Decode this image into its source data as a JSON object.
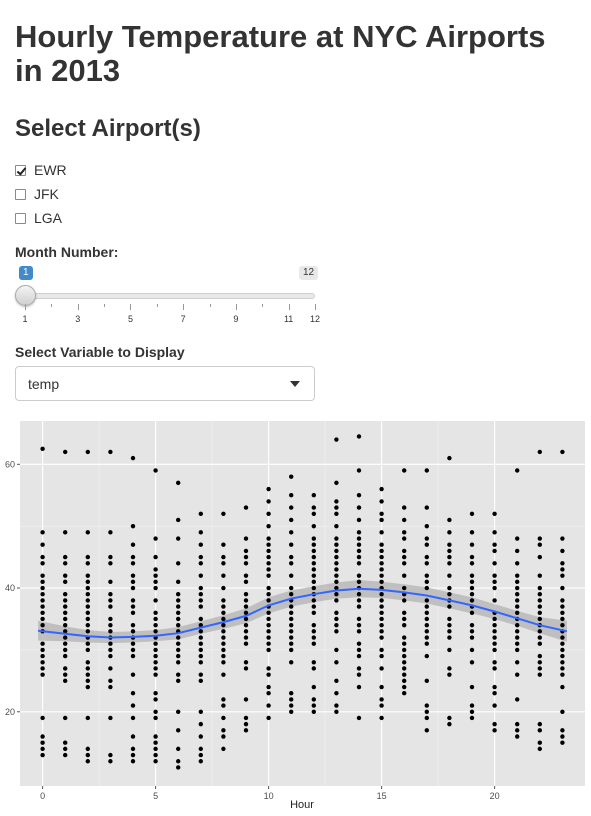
{
  "header": {
    "title": "Hourly Temperature at NYC Airports in 2013"
  },
  "airports": {
    "title": "Select Airport(s)",
    "options": [
      {
        "label": "EWR",
        "checked": true
      },
      {
        "label": "JFK",
        "checked": false
      },
      {
        "label": "LGA",
        "checked": false
      }
    ]
  },
  "month": {
    "label": "Month Number:",
    "value": "1",
    "max_label": "12",
    "min": 1,
    "max": 12,
    "current": 1,
    "ticks": [
      "1",
      "3",
      "5",
      "7",
      "9",
      "11",
      "12"
    ]
  },
  "variable": {
    "label": "Select Variable to Display",
    "selected": "temp"
  },
  "chart_data": {
    "type": "scatter",
    "title": "",
    "xlabel": "Hour",
    "ylabel": "",
    "xlim": [
      -1,
      24
    ],
    "ylim": [
      8,
      67
    ],
    "xticks": [
      0,
      5,
      10,
      15,
      20
    ],
    "yticks": [
      20,
      40,
      60
    ],
    "grid": true,
    "background": "#e5e5e5",
    "point_color": "#000000",
    "smooth_color": "#3366ff",
    "band_color": "#b8b8b8",
    "columns": [
      {
        "x": 0,
        "y": [
          62.5,
          49,
          47,
          45,
          44,
          42,
          41,
          40,
          39,
          38,
          37,
          36,
          35,
          34,
          33,
          31,
          30,
          29,
          28,
          27,
          26,
          19,
          16,
          15,
          14,
          13
        ]
      },
      {
        "x": 1,
        "y": [
          62,
          49,
          45,
          44,
          42,
          41,
          39,
          38,
          37,
          36,
          35,
          34,
          33,
          32,
          31,
          30,
          29,
          27,
          26,
          25,
          19,
          15,
          14,
          13
        ]
      },
      {
        "x": 2,
        "y": [
          62,
          49,
          45,
          44,
          42,
          41,
          40,
          39,
          38,
          37,
          36,
          35,
          34,
          33,
          32,
          31,
          30,
          28,
          27,
          26,
          25,
          24,
          19,
          14,
          13,
          12
        ]
      },
      {
        "x": 3,
        "y": [
          62,
          49,
          45,
          44,
          41,
          39,
          38,
          37,
          35,
          34,
          33,
          32,
          31,
          30,
          29,
          27,
          25,
          24,
          19,
          13,
          12
        ]
      },
      {
        "x": 4,
        "y": [
          61,
          50,
          47,
          45,
          44,
          42,
          41,
          40,
          38,
          37,
          36,
          34,
          33,
          32,
          31,
          30,
          29,
          26,
          23,
          21,
          19,
          16,
          14,
          13,
          12
        ]
      },
      {
        "x": 5,
        "y": [
          59,
          48,
          45,
          43,
          42,
          41,
          40,
          38,
          36,
          35,
          34,
          33,
          32,
          31,
          30,
          29,
          28,
          27,
          26,
          23,
          22,
          20,
          19,
          16,
          15,
          14,
          13,
          12
        ]
      },
      {
        "x": 6,
        "y": [
          57,
          51,
          48,
          44,
          41,
          39,
          38,
          37,
          36,
          35,
          34,
          33,
          32,
          31,
          30,
          29,
          28,
          26,
          25,
          20,
          17,
          14,
          12,
          11
        ]
      },
      {
        "x": 7,
        "y": [
          52,
          49,
          47,
          45,
          44,
          42,
          40,
          39,
          38,
          37,
          35,
          34,
          33,
          32,
          31,
          30,
          29,
          28,
          26,
          25,
          20,
          18,
          16,
          14,
          13,
          12
        ]
      },
      {
        "x": 8,
        "y": [
          52,
          47,
          45,
          44,
          42,
          40,
          38,
          37,
          36,
          35,
          34,
          33,
          32,
          31,
          30,
          29,
          28,
          26,
          22,
          21,
          19,
          17,
          16,
          14
        ]
      },
      {
        "x": 9,
        "y": [
          53,
          48,
          46,
          45,
          44,
          42,
          41,
          39,
          38,
          37,
          36,
          35,
          34,
          33,
          32,
          31,
          28,
          27,
          22,
          19,
          18,
          17
        ]
      },
      {
        "x": 10,
        "y": [
          56,
          54,
          52,
          50,
          48,
          47,
          46,
          45,
          44,
          43,
          42,
          40,
          39,
          38,
          37,
          36,
          35,
          34,
          33,
          32,
          31,
          30,
          27,
          26,
          24,
          23,
          21,
          19
        ]
      },
      {
        "x": 11,
        "y": [
          58,
          55,
          53,
          51,
          49,
          47,
          45,
          44,
          42,
          40,
          39,
          38,
          37,
          36,
          35,
          34,
          33,
          32,
          31,
          30,
          28,
          23,
          22,
          21,
          20
        ]
      },
      {
        "x": 12,
        "y": [
          55,
          53,
          52,
          50,
          48,
          47,
          46,
          45,
          44,
          43,
          42,
          41,
          40,
          39,
          38,
          37,
          36,
          34,
          33,
          32,
          31,
          28,
          27,
          24,
          22,
          21,
          20
        ]
      },
      {
        "x": 13,
        "y": [
          64,
          57,
          54,
          53,
          52,
          50,
          48,
          47,
          46,
          45,
          44,
          43,
          42,
          41,
          40,
          39,
          38,
          36,
          35,
          34,
          33,
          30,
          28,
          25,
          23,
          21,
          20
        ]
      },
      {
        "x": 14,
        "y": [
          64.5,
          59,
          55,
          53,
          51,
          49,
          48,
          47,
          46,
          45,
          44,
          42,
          41,
          40,
          39,
          38,
          37,
          35,
          34,
          33,
          31,
          30,
          29,
          27,
          26,
          24,
          19
        ]
      },
      {
        "x": 15,
        "y": [
          56,
          54,
          52,
          51,
          49,
          47,
          46,
          45,
          44,
          43,
          42,
          41,
          40,
          39,
          38,
          37,
          36,
          35,
          34,
          33,
          32,
          30,
          29,
          27,
          24,
          22,
          21,
          19
        ]
      },
      {
        "x": 16,
        "y": [
          59,
          53,
          51,
          49,
          48,
          46,
          45,
          44,
          42,
          40,
          39,
          38,
          36,
          35,
          34,
          32,
          31,
          30,
          29,
          28,
          27,
          26,
          25,
          24,
          23
        ]
      },
      {
        "x": 17,
        "y": [
          59,
          53,
          50,
          48,
          47,
          45,
          44,
          42,
          41,
          40,
          38,
          37,
          36,
          35,
          34,
          33,
          32,
          31,
          29,
          25,
          21,
          20,
          19,
          17
        ]
      },
      {
        "x": 18,
        "y": [
          61,
          51,
          49,
          47,
          46,
          45,
          44,
          42,
          40,
          39,
          38,
          37,
          35,
          34,
          33,
          32,
          30,
          27,
          26,
          19,
          18
        ]
      },
      {
        "x": 19,
        "y": [
          52,
          49,
          47,
          45,
          44,
          42,
          41,
          40,
          39,
          38,
          37,
          36,
          34,
          33,
          32,
          30,
          28,
          24,
          21,
          20,
          19
        ]
      },
      {
        "x": 20,
        "y": [
          52,
          49,
          47,
          46,
          44,
          42,
          41,
          40,
          38,
          36,
          35,
          34,
          33,
          32,
          31,
          30,
          28,
          27,
          24,
          23,
          21,
          18,
          17
        ]
      },
      {
        "x": 21,
        "y": [
          59,
          48,
          46,
          44,
          42,
          41,
          40,
          39,
          38,
          37,
          36,
          35,
          34,
          33,
          32,
          31,
          30,
          28,
          26,
          22,
          18,
          17,
          16
        ]
      },
      {
        "x": 22,
        "y": [
          62,
          48,
          47,
          45,
          42,
          40,
          39,
          38,
          37,
          36,
          35,
          34,
          33,
          32,
          31,
          29,
          28,
          27,
          26,
          18,
          17,
          15,
          14
        ]
      },
      {
        "x": 23,
        "y": [
          62,
          48,
          46,
          44,
          43,
          42,
          40,
          38,
          37,
          36,
          35,
          34,
          33,
          32,
          31,
          30,
          29,
          28,
          27,
          26,
          24,
          20,
          17,
          16,
          15
        ]
      }
    ],
    "smooth": {
      "x": [
        -0.2,
        1,
        2,
        3,
        4,
        5,
        6,
        7,
        8,
        9,
        10,
        11,
        12,
        13,
        14,
        15,
        16,
        17,
        18,
        19,
        20,
        21,
        22,
        23.2
      ],
      "y": [
        33.1,
        32.6,
        32.2,
        32.0,
        32.1,
        32.3,
        32.7,
        33.6,
        34.5,
        35.5,
        37.2,
        38.3,
        39.0,
        39.6,
        39.9,
        39.7,
        39.3,
        38.8,
        38.0,
        37.2,
        36.2,
        35.1,
        34.0,
        33.0
      ],
      "band": [
        1.6,
        1.2,
        1.0,
        0.9,
        0.9,
        0.9,
        1.0,
        1.0,
        1.1,
        1.2,
        1.3,
        1.3,
        1.3,
        1.3,
        1.4,
        1.3,
        1.3,
        1.3,
        1.3,
        1.3,
        1.2,
        1.2,
        1.3,
        1.7
      ]
    }
  }
}
